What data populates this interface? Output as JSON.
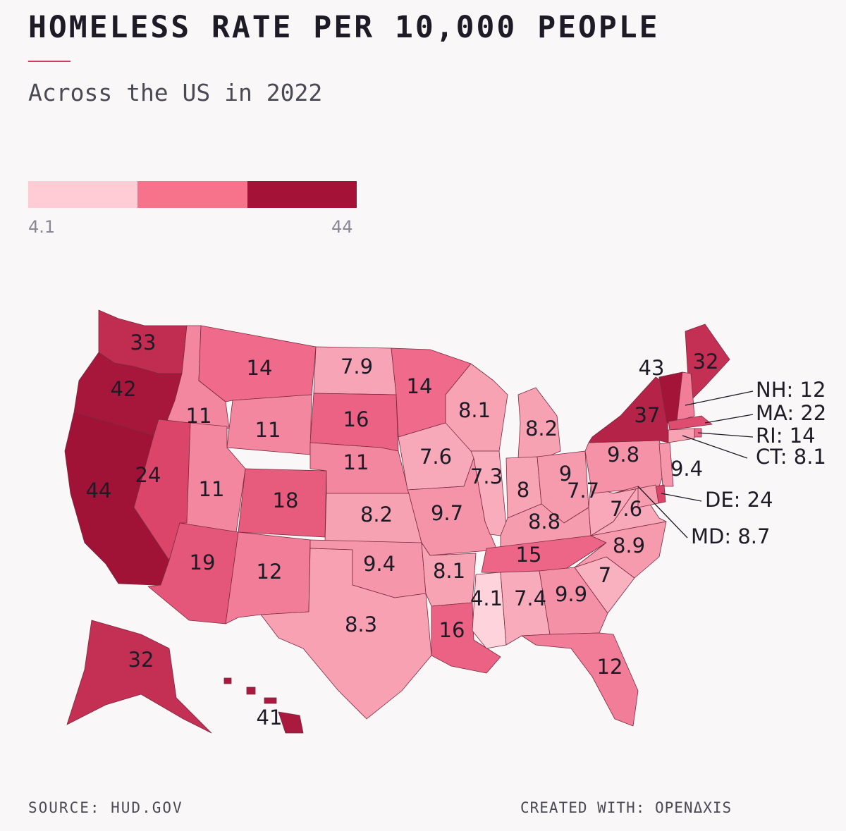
{
  "title": "HOMELESS RATE PER 10,000 PEOPLE",
  "subtitle": "Across the US in 2022",
  "legend": {
    "min": "4.1",
    "max": "44",
    "colors": [
      "#ffccd6",
      "#f7728b",
      "#a51237"
    ]
  },
  "chart_data": {
    "type": "choropleth",
    "title": "HOMELESS RATE PER 10,000 PEOPLE",
    "subtitle": "Across the US in 2022",
    "range": [
      4.1,
      44
    ],
    "states": [
      {
        "state": "WA",
        "value": 33
      },
      {
        "state": "OR",
        "value": 42
      },
      {
        "state": "CA",
        "value": 44
      },
      {
        "state": "ID",
        "value": 11
      },
      {
        "state": "NV",
        "value": 24
      },
      {
        "state": "MT",
        "value": 14
      },
      {
        "state": "WY",
        "value": 11
      },
      {
        "state": "UT",
        "value": 11
      },
      {
        "state": "AZ",
        "value": 19
      },
      {
        "state": "CO",
        "value": 18
      },
      {
        "state": "NM",
        "value": 12
      },
      {
        "state": "ND",
        "value": 7.9
      },
      {
        "state": "SD",
        "value": 16
      },
      {
        "state": "NE",
        "value": 11
      },
      {
        "state": "KS",
        "value": 8.2
      },
      {
        "state": "OK",
        "value": 9.4
      },
      {
        "state": "TX",
        "value": 8.3
      },
      {
        "state": "MN",
        "value": 14
      },
      {
        "state": "IA",
        "value": 7.6
      },
      {
        "state": "MO",
        "value": 9.7
      },
      {
        "state": "AR",
        "value": 8.1
      },
      {
        "state": "LA",
        "value": 16
      },
      {
        "state": "WI",
        "value": 8.1
      },
      {
        "state": "IL",
        "value": 7.3
      },
      {
        "state": "MI",
        "value": 8.2
      },
      {
        "state": "IN",
        "value": 8
      },
      {
        "state": "OH",
        "value": 9
      },
      {
        "state": "KY",
        "value": 8.8
      },
      {
        "state": "TN",
        "value": 15
      },
      {
        "state": "MS",
        "value": 4.1
      },
      {
        "state": "AL",
        "value": 7.4
      },
      {
        "state": "GA",
        "value": 9.9
      },
      {
        "state": "FL",
        "value": 12
      },
      {
        "state": "SC",
        "value": 7
      },
      {
        "state": "NC",
        "value": 8.9
      },
      {
        "state": "VA",
        "value": 7.6
      },
      {
        "state": "WV",
        "value": 7.7
      },
      {
        "state": "PA",
        "value": 9.8
      },
      {
        "state": "NY",
        "value": 37
      },
      {
        "state": "VT",
        "value": 43
      },
      {
        "state": "ME",
        "value": 32
      },
      {
        "state": "NJ",
        "value": 9.4
      },
      {
        "state": "NH",
        "value": 12
      },
      {
        "state": "MA",
        "value": 22
      },
      {
        "state": "RI",
        "value": 14
      },
      {
        "state": "CT",
        "value": 8.1
      },
      {
        "state": "DE",
        "value": 24
      },
      {
        "state": "MD",
        "value": 8.7
      },
      {
        "state": "AK",
        "value": 32
      },
      {
        "state": "HI",
        "value": 41
      }
    ]
  },
  "callouts": [
    {
      "state": "NH",
      "text": "NH: 12"
    },
    {
      "state": "MA",
      "text": "MA: 22"
    },
    {
      "state": "RI",
      "text": "RI: 14"
    },
    {
      "state": "CT",
      "text": "CT: 8.1"
    },
    {
      "state": "DE",
      "text": "DE: 24"
    },
    {
      "state": "MD",
      "text": "MD: 8.7"
    }
  ],
  "footer": {
    "source": "SOURCE: HUD.GOV",
    "credit": "CREATED WITH: OPENΔXIS"
  }
}
